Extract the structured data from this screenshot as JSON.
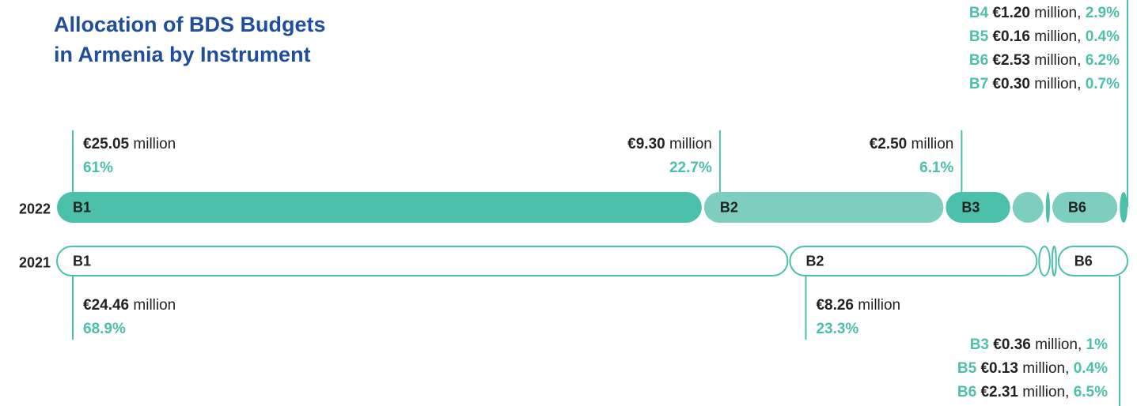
{
  "chart_data": {
    "type": "stacked-bar",
    "title": [
      "Allocation of BDS Budgets",
      "in Armenia by Instrument"
    ],
    "unit": "million",
    "separator": ",",
    "series": [
      {
        "name": "2022",
        "segments": [
          {
            "name": "B1",
            "value": 25.05,
            "value_label": "€25.05",
            "share": 61,
            "share_label": "61%"
          },
          {
            "name": "B2",
            "value": 9.3,
            "value_label": "€9.30",
            "share": 22.7,
            "share_label": "22.7%"
          },
          {
            "name": "B3",
            "value": 2.5,
            "value_label": "€2.50",
            "share": 6.1,
            "share_label": "6.1%"
          },
          {
            "name": "B4",
            "value": 1.2,
            "value_label": "€1.20",
            "share": 2.9,
            "share_label": "2.9%"
          },
          {
            "name": "B5",
            "value": 0.16,
            "value_label": "€0.16",
            "share": 0.4,
            "share_label": "0.4%"
          },
          {
            "name": "B6",
            "value": 2.53,
            "value_label": "€2.53",
            "share": 6.2,
            "share_label": "6.2%"
          },
          {
            "name": "B7",
            "value": 0.3,
            "value_label": "€0.30",
            "share": 0.7,
            "share_label": "0.7%"
          }
        ]
      },
      {
        "name": "2021",
        "segments": [
          {
            "name": "B1",
            "value": 24.46,
            "value_label": "€24.46",
            "share": 68.9,
            "share_label": "68.9%"
          },
          {
            "name": "B2",
            "value": 8.26,
            "value_label": "€8.26",
            "share": 23.3,
            "share_label": "23.3%"
          },
          {
            "name": "B3",
            "value": 0.36,
            "value_label": "€0.36",
            "share": 1,
            "share_label": "1%"
          },
          {
            "name": "B5",
            "value": 0.13,
            "value_label": "€0.13",
            "share": 0.4,
            "share_label": "0.4%"
          },
          {
            "name": "B6",
            "value": 2.31,
            "value_label": "€2.31",
            "share": 6.5,
            "share_label": "6.5%"
          }
        ]
      }
    ],
    "colors": [
      "#4cc0aa",
      "#7dcebe"
    ]
  }
}
